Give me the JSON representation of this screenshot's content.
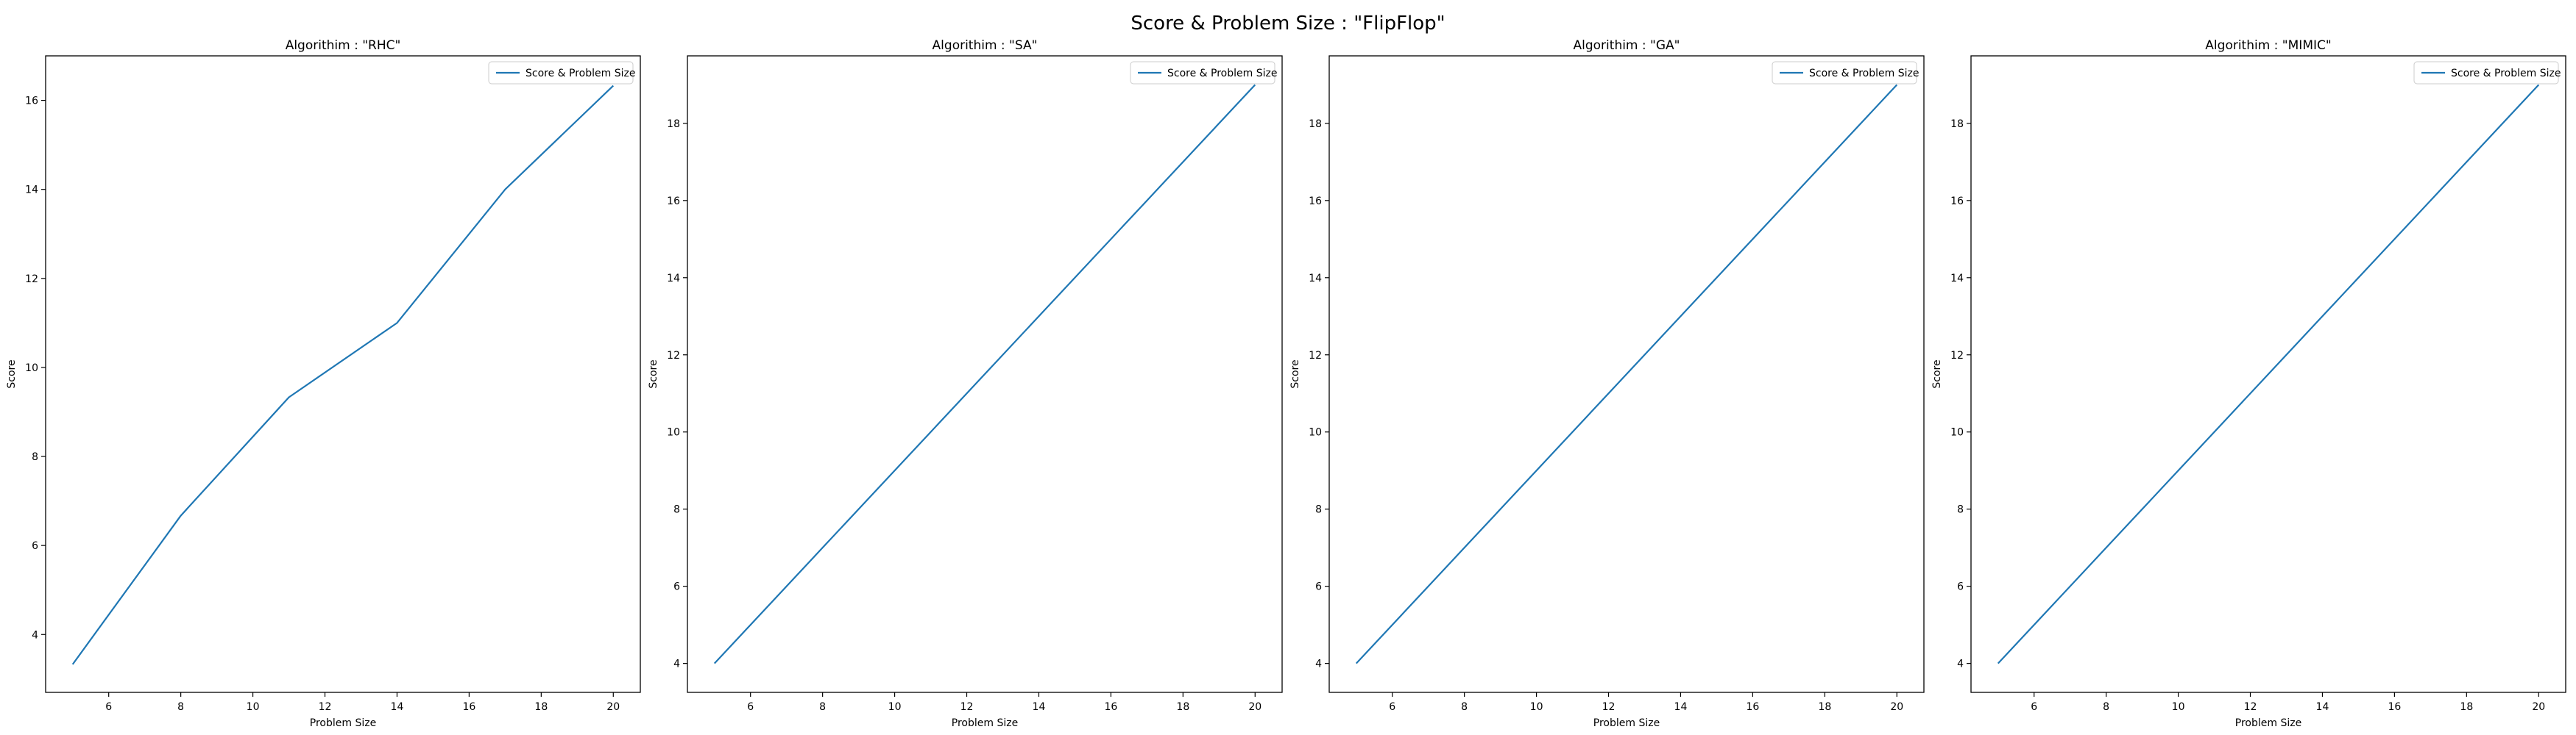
{
  "figure": {
    "suptitle": "Score & Problem Size : \"FlipFlop\"",
    "line_color": "#1f77b4"
  },
  "chart_data": [
    {
      "type": "line",
      "title": "Algorithim : \"RHC\"",
      "xlabel": "Problem Size",
      "ylabel": "Score",
      "xlim": [
        4.25,
        20.75
      ],
      "ylim": [
        2.7,
        17.0
      ],
      "x_ticks": [
        6,
        8,
        10,
        12,
        14,
        16,
        18,
        20
      ],
      "y_ticks": [
        4,
        6,
        8,
        10,
        12,
        14,
        16
      ],
      "legend_position": "upper right",
      "grid": false,
      "series": [
        {
          "name": "Score & Problem Size",
          "x": [
            5,
            8,
            11,
            14,
            17,
            20
          ],
          "values": [
            3.33,
            6.67,
            9.33,
            11.0,
            14.0,
            16.33
          ]
        }
      ]
    },
    {
      "type": "line",
      "title": "Algorithim : \"SA\"",
      "xlabel": "Problem Size",
      "ylabel": "Score",
      "xlim": [
        4.25,
        20.75
      ],
      "ylim": [
        3.25,
        19.75
      ],
      "x_ticks": [
        6,
        8,
        10,
        12,
        14,
        16,
        18,
        20
      ],
      "y_ticks": [
        4,
        6,
        8,
        10,
        12,
        14,
        16,
        18
      ],
      "legend_position": "upper right",
      "grid": false,
      "series": [
        {
          "name": "Score & Problem Size",
          "x": [
            5,
            8,
            11,
            14,
            17,
            20
          ],
          "values": [
            4,
            7,
            10,
            13,
            16,
            19
          ]
        }
      ]
    },
    {
      "type": "line",
      "title": "Algorithim : \"GA\"",
      "xlabel": "Problem Size",
      "ylabel": "Score",
      "xlim": [
        4.25,
        20.75
      ],
      "ylim": [
        3.25,
        19.75
      ],
      "x_ticks": [
        6,
        8,
        10,
        12,
        14,
        16,
        18,
        20
      ],
      "y_ticks": [
        4,
        6,
        8,
        10,
        12,
        14,
        16,
        18
      ],
      "legend_position": "upper right",
      "grid": false,
      "series": [
        {
          "name": "Score & Problem Size",
          "x": [
            5,
            8,
            11,
            14,
            17,
            20
          ],
          "values": [
            4,
            7,
            10,
            13,
            16,
            19
          ]
        }
      ]
    },
    {
      "type": "line",
      "title": "Algorithim : \"MIMIC\"",
      "xlabel": "Problem Size",
      "ylabel": "Score",
      "xlim": [
        4.25,
        20.75
      ],
      "ylim": [
        3.25,
        19.75
      ],
      "x_ticks": [
        6,
        8,
        10,
        12,
        14,
        16,
        18,
        20
      ],
      "y_ticks": [
        4,
        6,
        8,
        10,
        12,
        14,
        16,
        18
      ],
      "legend_position": "upper right",
      "grid": false,
      "series": [
        {
          "name": "Score & Problem Size",
          "x": [
            5,
            8,
            11,
            14,
            17,
            20
          ],
          "values": [
            4,
            7,
            10,
            13,
            16,
            19
          ]
        }
      ]
    }
  ]
}
